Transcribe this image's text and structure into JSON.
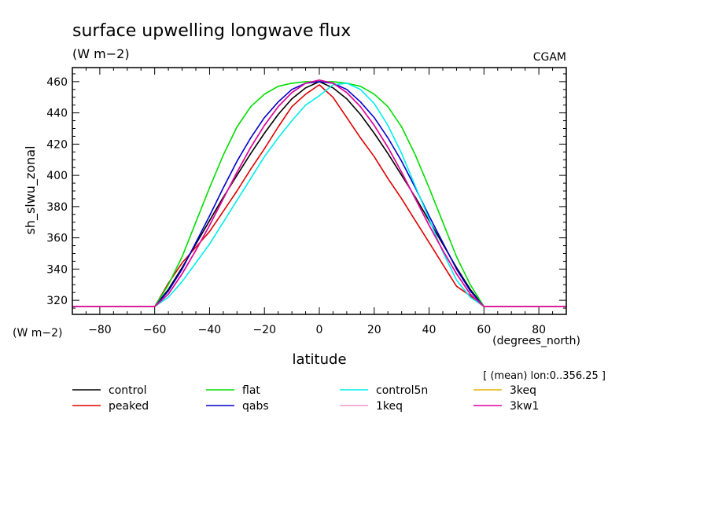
{
  "chart_data": {
    "type": "line",
    "title": "surface upwelling longwave flux",
    "units": "(W m−2)",
    "source_label": "CGAM",
    "ylabel": "sh_slwu_zonal",
    "yunits": "(W m−2)",
    "xlabel": "latitude",
    "xunits": "(degrees_north)",
    "subset_note": "[ (mean) lon:0..356.25 ]",
    "xlim": [
      -90,
      90
    ],
    "ylim": [
      311,
      469
    ],
    "x_ticks": [
      -80,
      -60,
      -40,
      -20,
      0,
      20,
      40,
      60,
      80
    ],
    "y_ticks": [
      320,
      340,
      360,
      380,
      400,
      420,
      440,
      460
    ],
    "x": [
      -90,
      -80,
      -70,
      -60,
      -55,
      -50,
      -45,
      -40,
      -35,
      -30,
      -25,
      -20,
      -15,
      -10,
      -5,
      0,
      5,
      10,
      15,
      20,
      25,
      30,
      35,
      40,
      45,
      50,
      55,
      60,
      70,
      80,
      90
    ],
    "series": [
      {
        "name": "control",
        "color": "#000000",
        "values": [
          316,
          316,
          316,
          316,
          327,
          341,
          356,
          371,
          386,
          400,
          414,
          427,
          439,
          449,
          456,
          460,
          456,
          449,
          439,
          427,
          414,
          400,
          386,
          371,
          356,
          341,
          327,
          316,
          316,
          316,
          316
        ]
      },
      {
        "name": "peaked",
        "color": "#dd0000",
        "values": [
          316,
          316,
          316,
          316,
          331,
          344,
          354,
          364,
          377,
          390,
          404,
          417,
          431,
          444,
          452,
          458,
          450,
          437,
          424,
          412,
          398,
          385,
          371,
          357,
          343,
          329,
          323,
          316,
          316,
          316,
          316
        ]
      },
      {
        "name": "flat",
        "color": "#00dd00",
        "values": [
          316,
          316,
          316,
          316,
          330,
          348,
          370,
          392,
          413,
          431,
          444,
          452,
          457,
          459,
          460,
          460,
          460,
          459,
          457,
          452,
          444,
          431,
          413,
          392,
          370,
          348,
          330,
          316,
          316,
          316,
          316
        ]
      },
      {
        "name": "qabs",
        "color": "#0000cc",
        "values": [
          316,
          316,
          316,
          316,
          326,
          340,
          357,
          374,
          392,
          409,
          424,
          437,
          447,
          455,
          459,
          460,
          459,
          455,
          447,
          437,
          424,
          409,
          392,
          374,
          357,
          340,
          326,
          316,
          316,
          316,
          316
        ]
      },
      {
        "name": "control5n",
        "color": "#00eeee",
        "values": [
          316,
          316,
          316,
          316,
          322,
          332,
          344,
          356,
          370,
          384,
          398,
          412,
          424,
          435,
          445,
          451,
          458,
          459,
          455,
          446,
          432,
          414,
          393,
          372,
          351,
          333,
          322,
          316,
          316,
          316,
          316
        ]
      },
      {
        "name": "1keq",
        "color": "#ee99cc",
        "values": [
          316,
          316,
          316,
          316,
          324,
          337,
          352,
          368,
          385,
          402,
          418,
          432,
          444,
          453,
          459,
          461,
          459,
          453,
          444,
          432,
          418,
          402,
          385,
          368,
          352,
          337,
          324,
          316,
          316,
          316,
          316
        ]
      },
      {
        "name": "3keq",
        "color": "#e8b000",
        "values": [
          316,
          316,
          316,
          316,
          324,
          337,
          352,
          368,
          385,
          402,
          418,
          432,
          444,
          453,
          459,
          461,
          459,
          453,
          444,
          432,
          418,
          402,
          385,
          368,
          352,
          337,
          324,
          316,
          316,
          316,
          316
        ]
      },
      {
        "name": "3kw1",
        "color": "#dd00aa",
        "values": [
          316,
          316,
          316,
          316,
          324,
          337,
          352,
          368,
          385,
          402,
          418,
          432,
          444,
          453,
          459,
          461,
          459,
          453,
          444,
          432,
          418,
          402,
          385,
          368,
          352,
          337,
          324,
          316,
          316,
          316,
          316
        ]
      }
    ],
    "legend_order": [
      "control",
      "flat",
      "control5n",
      "3keq",
      "peaked",
      "qabs",
      "1keq",
      "3kw1"
    ],
    "legend_placement": "bottom",
    "grid": false
  }
}
